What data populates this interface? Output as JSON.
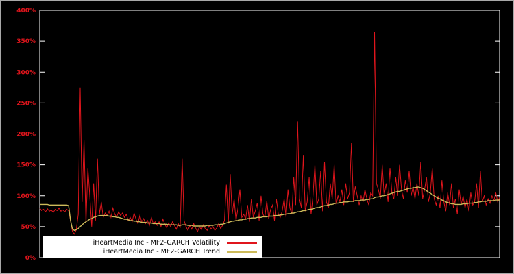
{
  "colors": {
    "background": "#000000",
    "plot_border": "#ffffff",
    "axis_tick": "#ffffff",
    "axis_label": "#e0151c",
    "volatility_line": "#e0151c",
    "trend_line": "#cdbb5a",
    "legend_background": "#ffffff",
    "legend_text": "#000000"
  },
  "chart_data": {
    "type": "line",
    "title": "",
    "xlabel": "",
    "ylabel": "",
    "ylim": [
      0,
      400
    ],
    "grid": false,
    "legend_position": "bottom-left-inside",
    "y_tick_values": [
      0,
      50,
      100,
      150,
      200,
      250,
      300,
      350,
      400
    ],
    "y_tick_labels": [
      "0%",
      "50%",
      "100%",
      "150%",
      "200%",
      "250%",
      "300%",
      "350%",
      "400%"
    ],
    "x_tick_labels": [],
    "series": [
      {
        "name": "iHeartMedia Inc - MF2-GARCH Volatility",
        "color": "#e0151c",
        "unit": "percent",
        "values": [
          80,
          76,
          78,
          74,
          79,
          75,
          77,
          73,
          78,
          76,
          80,
          75,
          77,
          74,
          78,
          76,
          60,
          42,
          38,
          45,
          70,
          275,
          90,
          190,
          55,
          145,
          100,
          50,
          120,
          60,
          160,
          70,
          90,
          65,
          72,
          68,
          75,
          65,
          80,
          70,
          66,
          74,
          68,
          72,
          65,
          70,
          60,
          65,
          58,
          72,
          62,
          55,
          68,
          58,
          63,
          55,
          60,
          52,
          65,
          55,
          58,
          52,
          58,
          50,
          62,
          54,
          48,
          56,
          50,
          58,
          52,
          46,
          55,
          48,
          160,
          60,
          50,
          44,
          52,
          46,
          55,
          48,
          42,
          50,
          45,
          53,
          47,
          44,
          52,
          46,
          50,
          44,
          48,
          55,
          47,
          52,
          60,
          118,
          55,
          135,
          70,
          95,
          60,
          80,
          110,
          65,
          70,
          62,
          85,
          58,
          95,
          65,
          75,
          88,
          60,
          100,
          70,
          65,
          92,
          62,
          78,
          85,
          60,
          95,
          70,
          65,
          75,
          95,
          65,
          110,
          80,
          70,
          130,
          85,
          220,
          95,
          80,
          165,
          75,
          90,
          130,
          70,
          100,
          150,
          85,
          95,
          140,
          75,
          155,
          90,
          80,
          120,
          95,
          150,
          85,
          100,
          90,
          110,
          85,
          120,
          95,
          105,
          185,
          90,
          115,
          100,
          85,
          100,
          90,
          110,
          95,
          85,
          105,
          100,
          365,
          120,
          110,
          95,
          150,
          100,
          120,
          90,
          145,
          105,
          95,
          130,
          100,
          150,
          110,
          95,
          125,
          105,
          140,
          100,
          115,
          95,
          120,
          100,
          155,
          95,
          110,
          130,
          90,
          105,
          145,
          95,
          85,
          100,
          80,
          125,
          90,
          75,
          105,
          85,
          120,
          80,
          95,
          70,
          110,
          85,
          100,
          80,
          95,
          75,
          105,
          85,
          90,
          120,
          80,
          140,
          90,
          100,
          85,
          95,
          88,
          100,
          92,
          105,
          90,
          97
        ]
      },
      {
        "name": "iHeartMedia Inc - MF2-GARCH Trend",
        "color": "#cdbb5a",
        "unit": "percent",
        "values": [
          86,
          86,
          86,
          86,
          86,
          85,
          85,
          85,
          85,
          85,
          85,
          85,
          85,
          85,
          85,
          84,
          60,
          46,
          44,
          45,
          47,
          50,
          53,
          56,
          58,
          60,
          62,
          63,
          65,
          66,
          67,
          68,
          68,
          68,
          68,
          68,
          67,
          67,
          66,
          66,
          65,
          65,
          64,
          63,
          62,
          62,
          61,
          60,
          60,
          59,
          59,
          58,
          58,
          57,
          57,
          57,
          56,
          56,
          56,
          55,
          55,
          55,
          55,
          54,
          54,
          54,
          54,
          53,
          53,
          53,
          53,
          53,
          52,
          52,
          53,
          53,
          53,
          52,
          52,
          52,
          51,
          51,
          51,
          51,
          51,
          51,
          51,
          52,
          52,
          52,
          52,
          53,
          53,
          53,
          54,
          54,
          55,
          56,
          57,
          58,
          59,
          59,
          60,
          60,
          61,
          61,
          62,
          62,
          63,
          63,
          64,
          64,
          64,
          65,
          65,
          65,
          66,
          66,
          66,
          67,
          67,
          67,
          68,
          68,
          68,
          69,
          69,
          70,
          70,
          71,
          71,
          72,
          72,
          73,
          74,
          74,
          75,
          76,
          76,
          77,
          78,
          78,
          79,
          80,
          81,
          81,
          82,
          83,
          84,
          84,
          85,
          86,
          86,
          87,
          88,
          88,
          89,
          89,
          90,
          90,
          90,
          91,
          91,
          91,
          92,
          92,
          92,
          93,
          93,
          93,
          94,
          94,
          95,
          95,
          97,
          98,
          98,
          99,
          100,
          100,
          101,
          102,
          103,
          104,
          105,
          106,
          107,
          107,
          108,
          109,
          110,
          111,
          112,
          112,
          113,
          113,
          114,
          114,
          113,
          112,
          110,
          108,
          106,
          104,
          102,
          100,
          98,
          96,
          95,
          93,
          92,
          90,
          89,
          88,
          87,
          87,
          86,
          86,
          86,
          86,
          87,
          87,
          87,
          88,
          88,
          88,
          89,
          89,
          90,
          90,
          91,
          91,
          91,
          92,
          92,
          92,
          92,
          93,
          93,
          93
        ]
      }
    ]
  }
}
